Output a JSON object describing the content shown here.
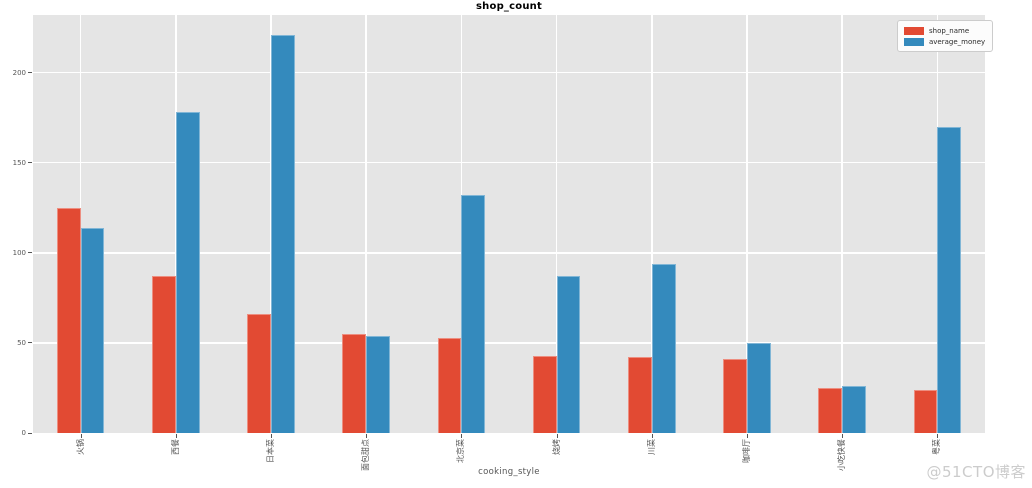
{
  "page": {
    "watermark": "@51CTO博客",
    "background": "#ffffff"
  },
  "chart_data": {
    "type": "bar",
    "title": "shop_count",
    "xlabel": "cooking_style",
    "ylabel": "",
    "categories": [
      "火锅",
      "西餐",
      "日本菜",
      "面包甜点",
      "北京菜",
      "烧烤",
      "川菜",
      "咖啡厅",
      "小吃快餐",
      "粤菜"
    ],
    "series": [
      {
        "name": "shop_name",
        "color": "#E24A33",
        "values": [
          125,
          87,
          66,
          55,
          53,
          43,
          42,
          41,
          25,
          24
        ]
      },
      {
        "name": "average_money",
        "color": "#348ABD",
        "values": [
          114,
          178,
          221,
          54,
          132,
          87,
          94,
          50,
          26,
          170
        ]
      }
    ],
    "yticks": [
      0,
      50,
      100,
      150,
      200
    ],
    "ylim": [
      0,
      232
    ],
    "grid": true,
    "legend_position": "upper right",
    "plot_bg_color": "#E5E5E5",
    "grid_color": "#FFFFFF",
    "tick_label_color": "#555555",
    "watermark_color": "#cccccc"
  }
}
